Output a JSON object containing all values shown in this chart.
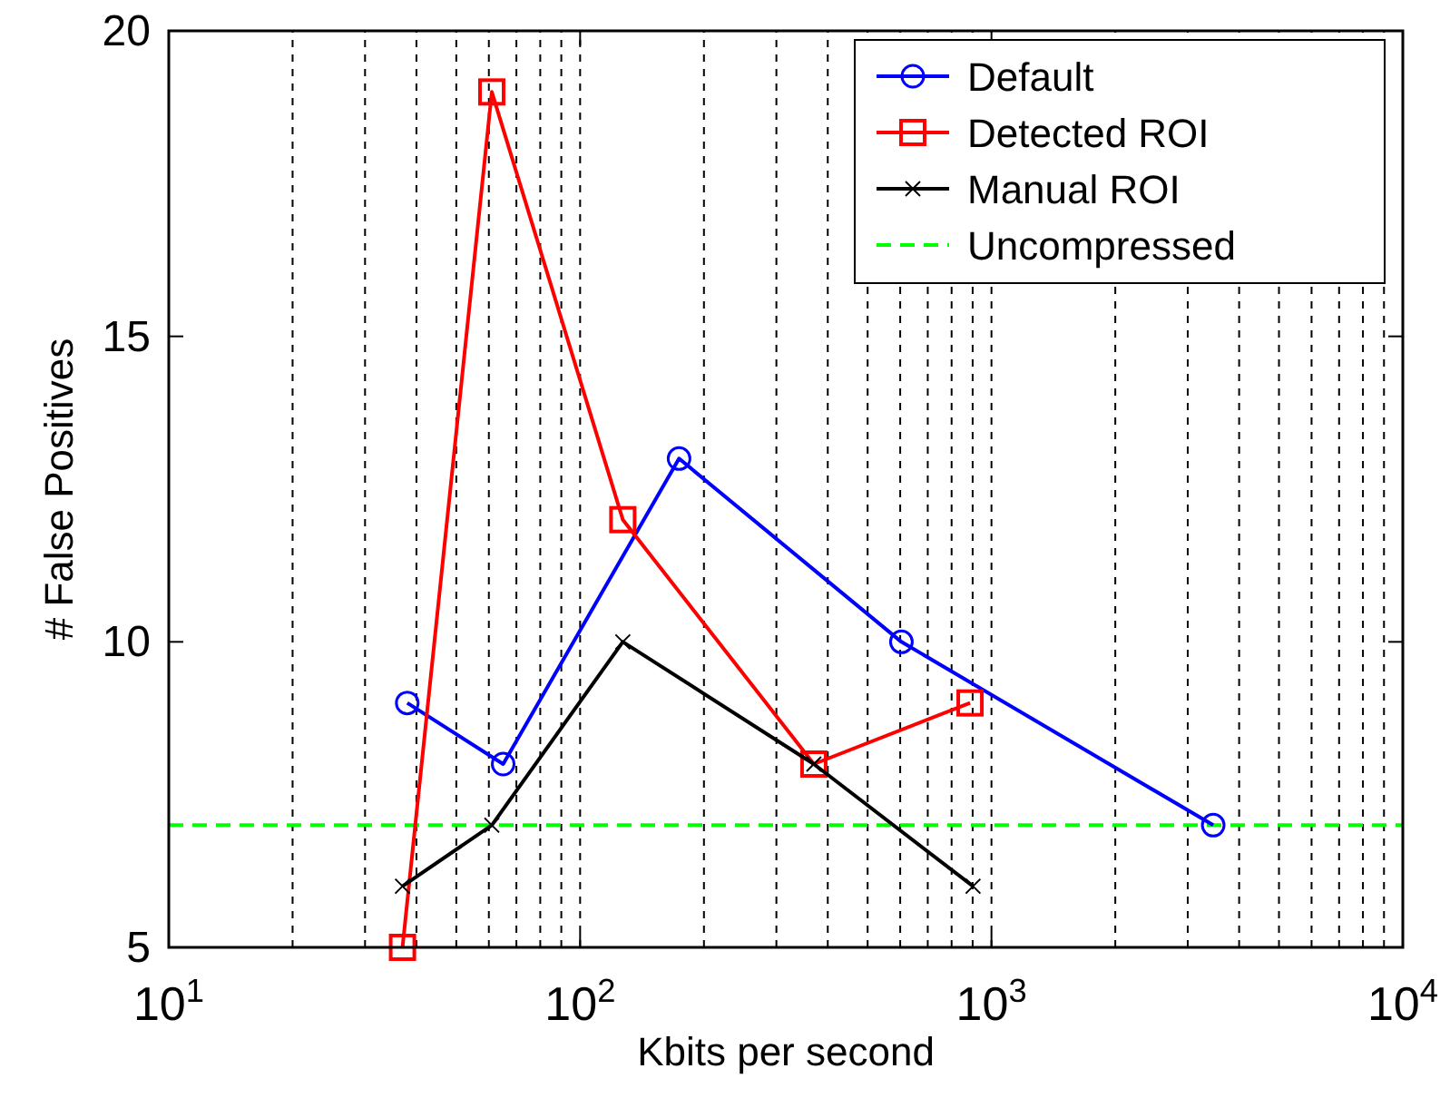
{
  "chart_data": {
    "type": "line",
    "xlabel": "Kbits per second",
    "ylabel": "# False Positives",
    "log": "x",
    "xlim": [
      10,
      10000
    ],
    "ylim": [
      5,
      20
    ],
    "xticks": [
      {
        "value": 10,
        "label": "10$^{1}$"
      },
      {
        "value": 100,
        "label": "10$^{2}$"
      },
      {
        "value": 1000,
        "label": "10$^{3}$"
      },
      {
        "value": 10000,
        "label": "10$^{4}$"
      }
    ],
    "yticks": [
      5,
      10,
      15,
      20
    ],
    "grid": "x",
    "legend": "top right",
    "line_style": "solid",
    "series": [
      {
        "name": "Default",
        "color": "#0000ff",
        "marker": "circle",
        "x": [
          38,
          65,
          174,
          604,
          3460
        ],
        "values": [
          9,
          8,
          13,
          10,
          7
        ]
      },
      {
        "name": "Detected ROI",
        "color": "#ff0000",
        "marker": "square",
        "x": [
          37,
          61,
          127,
          370,
          887
        ],
        "values": [
          5,
          19,
          12,
          8,
          9
        ]
      },
      {
        "name": "Manual ROI",
        "color": "#000000",
        "marker": "cross",
        "x": [
          37,
          61,
          127,
          370,
          902
        ],
        "values": [
          6,
          7,
          10,
          8,
          6
        ]
      }
    ],
    "ref_lines": [
      {
        "axis": "y",
        "value": 7,
        "label": "Uncompressed",
        "color": "#00ff00",
        "line_style": "dashed"
      }
    ]
  }
}
